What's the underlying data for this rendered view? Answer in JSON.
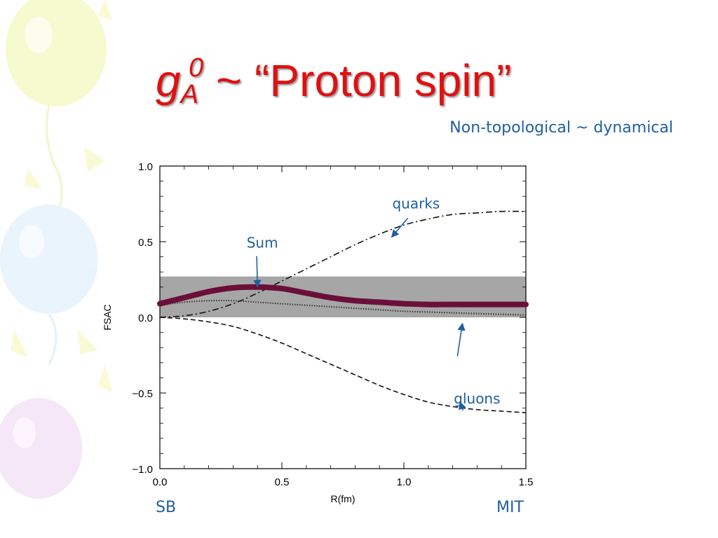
{
  "slide": {
    "title_g": "g",
    "title_sub": "A",
    "title_sup": "0",
    "title_rest": " ~ “Proton spin”",
    "subtitle": "Non-topological ~ dynamical",
    "left_label": "SB",
    "right_label": "MIT"
  },
  "colors": {
    "title": "#e01010",
    "annotation": "#1f5f9f",
    "sum_curve": "#6b0f3a",
    "band": "#a6a6a6"
  },
  "chart_data": {
    "type": "line",
    "title": "",
    "xlabel": "R(fm)",
    "ylabel": "FSAC",
    "xlim": [
      0.0,
      1.5
    ],
    "ylim": [
      -1.0,
      1.0
    ],
    "xticks": [
      0.0,
      0.5,
      1.0,
      1.5
    ],
    "xtick_labels": [
      "0.0",
      "0.5",
      "1.0",
      "1.5"
    ],
    "yticks": [
      1.0,
      0.5,
      0.0,
      -0.5,
      -1.0
    ],
    "ytick_labels": [
      "1.0",
      "0.5",
      "0.0",
      "−0.5",
      "−1.0"
    ],
    "grid": false,
    "band": {
      "y_low": 0.0,
      "y_high": 0.27
    },
    "series": [
      {
        "name": "quarks",
        "style": "dash-dot",
        "x": [
          0.0,
          0.1,
          0.2,
          0.3,
          0.4,
          0.5,
          0.6,
          0.7,
          0.8,
          0.9,
          1.0,
          1.1,
          1.2,
          1.3,
          1.4,
          1.5
        ],
        "y": [
          0.0,
          0.01,
          0.04,
          0.09,
          0.16,
          0.24,
          0.32,
          0.4,
          0.48,
          0.55,
          0.61,
          0.65,
          0.68,
          0.69,
          0.7,
          0.7
        ]
      },
      {
        "name": "gluons",
        "style": "dashed",
        "x": [
          0.0,
          0.1,
          0.2,
          0.3,
          0.4,
          0.5,
          0.6,
          0.7,
          0.8,
          0.9,
          1.0,
          1.1,
          1.2,
          1.3,
          1.4,
          1.5
        ],
        "y": [
          0.0,
          -0.01,
          -0.03,
          -0.06,
          -0.11,
          -0.17,
          -0.24,
          -0.31,
          -0.38,
          -0.45,
          -0.51,
          -0.56,
          -0.59,
          -0.61,
          -0.62,
          -0.63
        ]
      },
      {
        "name": "",
        "style": "dotted",
        "x": [
          0.0,
          0.1,
          0.2,
          0.3,
          0.4,
          0.5,
          0.6,
          0.7,
          0.8,
          0.9,
          1.0,
          1.1,
          1.2,
          1.3,
          1.4,
          1.5
        ],
        "y": [
          0.08,
          0.1,
          0.11,
          0.11,
          0.1,
          0.09,
          0.08,
          0.07,
          0.06,
          0.05,
          0.04,
          0.035,
          0.03,
          0.025,
          0.02,
          0.015
        ]
      },
      {
        "name": "Sum",
        "style": "thick",
        "x": [
          0.0,
          0.1,
          0.2,
          0.3,
          0.4,
          0.5,
          0.6,
          0.7,
          0.8,
          0.9,
          1.0,
          1.1,
          1.2,
          1.3,
          1.4,
          1.5
        ],
        "y": [
          0.09,
          0.13,
          0.17,
          0.195,
          0.2,
          0.19,
          0.16,
          0.13,
          0.11,
          0.1,
          0.09,
          0.085,
          0.085,
          0.085,
          0.085,
          0.085
        ]
      }
    ],
    "annotations": [
      {
        "text": "quarks",
        "x": 1.05,
        "y": 0.72,
        "arrow_to": [
          0.95,
          0.53
        ]
      },
      {
        "text": "Sum",
        "x": 0.42,
        "y": 0.46,
        "arrow_to": [
          0.4,
          0.2
        ]
      },
      {
        "text": "gluons",
        "x": 1.3,
        "y": -0.57,
        "arrow_to": [
          1.23,
          -0.56
        ]
      },
      {
        "text": "",
        "x": 1.3,
        "y": -0.28,
        "arrow_to": [
          1.24,
          -0.04
        ]
      }
    ]
  }
}
